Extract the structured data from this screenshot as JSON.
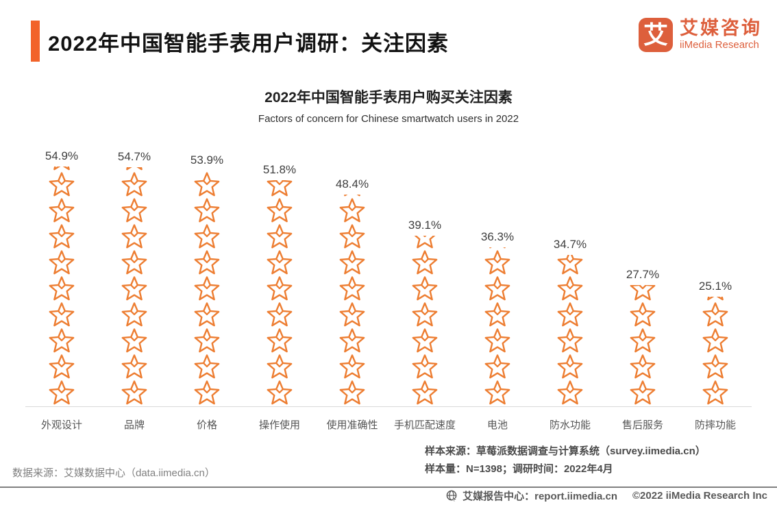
{
  "header": {
    "title": "2022年中国智能手表用户调研：关注因素",
    "accent_color": "#F2632A"
  },
  "logo": {
    "glyph": "艾",
    "name_cn": "艾媒咨询",
    "name_en": "iiMedia Research",
    "color": "#DD5F3C"
  },
  "chart_data": {
    "type": "bar",
    "subtype": "star-pictogram-column",
    "title": "2022年中国智能手表用户购买关注因素",
    "subtitle": "Factors of concern for Chinese smartwatch users in 2022",
    "categories": [
      "外观设计",
      "品牌",
      "价格",
      "操作使用",
      "使用准确性",
      "手机匹配速度",
      "电池",
      "防水功能",
      "售后服务",
      "防摔功能"
    ],
    "values": [
      54.9,
      54.7,
      53.9,
      51.8,
      48.4,
      39.1,
      36.3,
      34.7,
      27.7,
      25.1
    ],
    "labels": [
      "54.9%",
      "54.7%",
      "53.9%",
      "51.8%",
      "48.4%",
      "39.1%",
      "36.3%",
      "34.7%",
      "27.7%",
      "25.1%"
    ],
    "unit": "%",
    "ylim": [
      0,
      60
    ],
    "grid": false,
    "legend": false,
    "bar_color": "#ED7D31",
    "bar_icon": "star-icon"
  },
  "footer": {
    "source_left": "数据来源：艾媒数据中心（data.iimedia.cn）",
    "sample_source": "样本来源：草莓派数据调查与计算系统（survey.iimedia.cn）",
    "sample_info": "样本量：N=1398；调研时间：2022年4月"
  },
  "bottom_bar": {
    "report_center": "艾媒报告中心：report.iimedia.cn",
    "copyright": "©2022 iiMedia Research Inc"
  }
}
